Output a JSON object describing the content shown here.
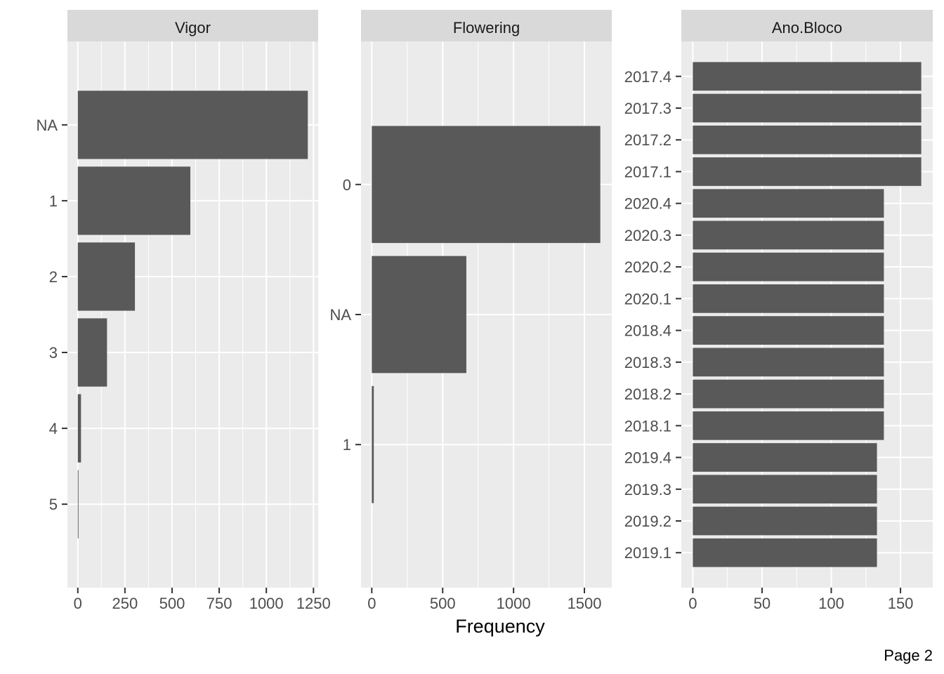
{
  "xlabel": "Frequency",
  "footer": "Page 2",
  "colors": {
    "panel_bg": "#EBEBEB",
    "strip_bg": "#D9D9D9",
    "grid": "#FFFFFF",
    "bar": "#595959",
    "tick": "#333333",
    "tick_text": "#4D4D4D"
  },
  "chart_data": [
    {
      "type": "bar",
      "orientation": "horizontal",
      "title": "Vigor",
      "categories": [
        "NA",
        "1",
        "2",
        "3",
        "4",
        "5"
      ],
      "values": [
        1220,
        597,
        303,
        155,
        17,
        3
      ],
      "xlim": [
        -55,
        1275
      ],
      "xticks": [
        0,
        250,
        500,
        750,
        1000,
        1250
      ],
      "xtick_labels": [
        "0",
        "250",
        "500",
        "750",
        "1000",
        "1250"
      ],
      "grid": true
    },
    {
      "type": "bar",
      "orientation": "horizontal",
      "title": "Flowering",
      "categories": [
        "0",
        "NA",
        "1"
      ],
      "values": [
        1612,
        667,
        14
      ],
      "xlim": [
        -76,
        1693
      ],
      "xticks": [
        0,
        500,
        1000,
        1500
      ],
      "xtick_labels": [
        "0",
        "500",
        "1000",
        "1500"
      ],
      "grid": true
    },
    {
      "type": "bar",
      "orientation": "horizontal",
      "title": "Ano.Bloco",
      "categories": [
        "2017.4",
        "2017.3",
        "2017.2",
        "2017.1",
        "2020.4",
        "2020.3",
        "2020.2",
        "2020.1",
        "2018.4",
        "2018.3",
        "2018.2",
        "2018.1",
        "2019.4",
        "2019.3",
        "2019.2",
        "2019.1"
      ],
      "values": [
        165,
        165,
        165,
        165,
        138,
        138,
        138,
        138,
        138,
        138,
        138,
        138,
        133,
        133,
        133,
        133
      ],
      "xlim": [
        -8.3,
        173.3
      ],
      "xticks": [
        0,
        50,
        100,
        150
      ],
      "xtick_labels": [
        "0",
        "50",
        "100",
        "150"
      ],
      "grid": true
    }
  ]
}
